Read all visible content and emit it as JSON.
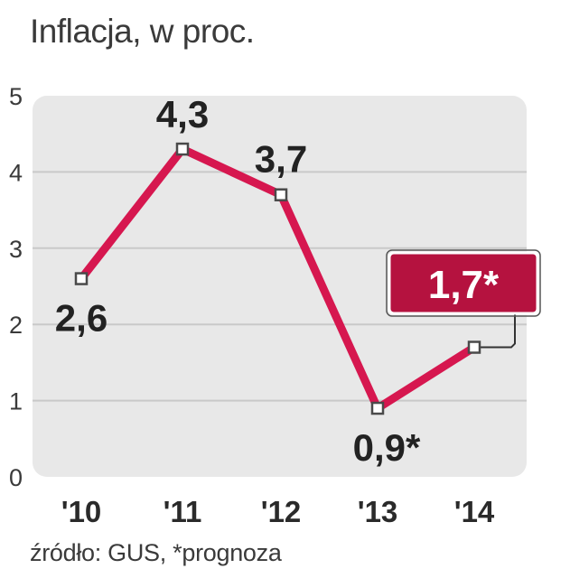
{
  "chart_data": {
    "type": "line",
    "title": "Inflacja, w proc.",
    "source": "źródło: GUS, *prognoza",
    "categories": [
      "'10",
      "'11",
      "'12",
      "'13",
      "'14"
    ],
    "values": [
      2.6,
      4.3,
      3.7,
      0.9,
      1.7
    ],
    "data_labels": [
      "2,6",
      "4,3",
      "3,7",
      "0,9*",
      "1,7*"
    ],
    "yticks": [
      "0",
      "1",
      "2",
      "3",
      "4",
      "5"
    ],
    "ylim": [
      0,
      5
    ],
    "grid": true,
    "colors": {
      "line": "#d6174f",
      "highlight_box": "#b5123f",
      "plot_background": "#e8e8e8",
      "grid": "#c9c9c9",
      "marker_fill": "#ffffff",
      "marker_stroke": "#4a4a4a"
    }
  }
}
